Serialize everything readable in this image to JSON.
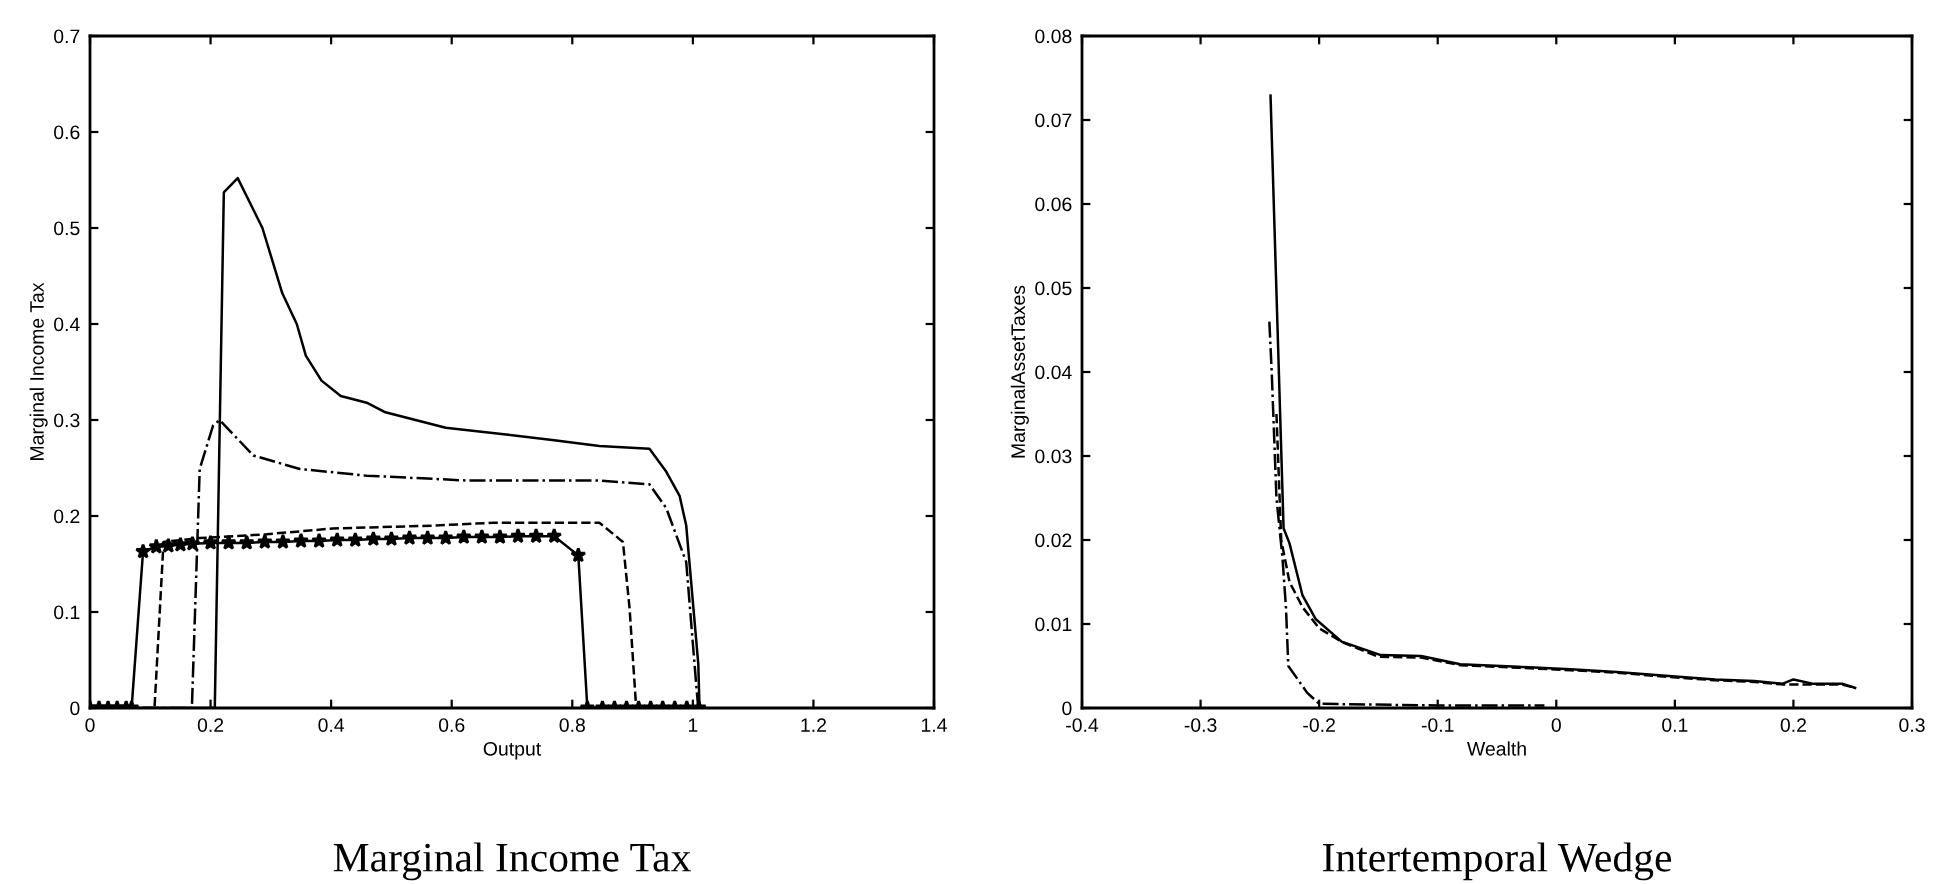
{
  "chart_data": [
    {
      "type": "line",
      "title": "Marginal Income Tax",
      "xlabel": "Output",
      "ylabel": "Marginal Income Tax",
      "xlim": [
        0,
        1.4
      ],
      "ylim": [
        0,
        0.7
      ],
      "xticks": [
        0,
        0.2,
        0.4,
        0.6,
        0.8,
        1,
        1.2,
        1.4
      ],
      "yticks": [
        0,
        0.1,
        0.2,
        0.3,
        0.4,
        0.5,
        0.6,
        0.7
      ],
      "grid": false,
      "legend": false,
      "series": [
        {
          "color": "#000000",
          "line_style": "solid",
          "marker": "none",
          "x": [
            0,
            0.207,
            0.222,
            0.245,
            0.286,
            0.319,
            0.343,
            0.358,
            0.384,
            0.416,
            0.459,
            0.49,
            0.59,
            0.69,
            0.77,
            0.845,
            0.928,
            0.956,
            0.978,
            0.989,
            1.009,
            1.011
          ],
          "values": [
            0,
            0,
            0.537,
            0.552,
            0.5,
            0.432,
            0.4,
            0.367,
            0.341,
            0.325,
            0.318,
            0.308,
            0.292,
            0.285,
            0.279,
            0.273,
            0.27,
            0.246,
            0.221,
            0.19,
            0.046,
            0
          ]
        },
        {
          "color": "#000000",
          "line_style": "dashdot",
          "marker": "none",
          "x": [
            0,
            0.169,
            0.182,
            0.204,
            0.215,
            0.271,
            0.348,
            0.459,
            0.624,
            0.845,
            0.928,
            0.956,
            0.989,
            1.006,
            1.009
          ],
          "values": [
            0,
            0,
            0.249,
            0.294,
            0.3,
            0.263,
            0.249,
            0.242,
            0.237,
            0.237,
            0.233,
            0.208,
            0.152,
            0.021,
            0
          ]
        },
        {
          "color": "#000000",
          "line_style": "dashed",
          "marker": "none",
          "x": [
            0,
            0.107,
            0.122,
            0.182,
            0.293,
            0.403,
            0.569,
            0.669,
            0.845,
            0.884,
            0.895,
            0.906
          ],
          "values": [
            0,
            0,
            0.173,
            0.177,
            0.181,
            0.187,
            0.19,
            0.193,
            0.193,
            0.173,
            0.104,
            0
          ]
        },
        {
          "color": "#000000",
          "line_style": "solid",
          "marker": "star",
          "x": [
            0,
            0.015,
            0.03,
            0.045,
            0.06,
            0.069,
            0.088,
            0.11,
            0.13,
            0.15,
            0.17,
            0.2,
            0.23,
            0.26,
            0.29,
            0.32,
            0.35,
            0.38,
            0.41,
            0.44,
            0.47,
            0.5,
            0.53,
            0.56,
            0.59,
            0.62,
            0.65,
            0.68,
            0.71,
            0.74,
            0.77,
            0.81,
            0.825,
            0.85,
            0.87,
            0.89,
            0.91,
            0.93,
            0.95,
            0.97,
            0.99,
            1.01
          ],
          "values": [
            0,
            0,
            0,
            0,
            0,
            0,
            0.163,
            0.168,
            0.169,
            0.17,
            0.171,
            0.172,
            0.172,
            0.172,
            0.173,
            0.173,
            0.174,
            0.174,
            0.175,
            0.175,
            0.176,
            0.176,
            0.177,
            0.177,
            0.177,
            0.178,
            0.178,
            0.178,
            0.179,
            0.179,
            0.179,
            0.159,
            0,
            0,
            0,
            0,
            0,
            0,
            0,
            0,
            0,
            0
          ]
        }
      ]
    },
    {
      "type": "line",
      "title": "Intertemporal Wedge",
      "xlabel": "Wealth",
      "ylabel": "MarginalAssetTaxes",
      "xlim": [
        -0.4,
        0.3
      ],
      "ylim": [
        0,
        0.08
      ],
      "xticks": [
        -0.4,
        -0.3,
        -0.2,
        -0.1,
        0,
        0.1,
        0.2,
        0.3
      ],
      "yticks": [
        0,
        0.01,
        0.02,
        0.03,
        0.04,
        0.05,
        0.06,
        0.07,
        0.08
      ],
      "grid": false,
      "legend": false,
      "series": [
        {
          "color": "#000000",
          "line_style": "solid",
          "marker": "none",
          "x": [
            -0.241,
            -0.23,
            -0.225,
            -0.214,
            -0.203,
            -0.181,
            -0.148,
            -0.114,
            -0.081,
            -0.032,
            0.012,
            0.051,
            0.095,
            0.134,
            0.167,
            0.191,
            0.2,
            0.216,
            0.241,
            0.252
          ],
          "values": [
            0.0729,
            0.0214,
            0.0196,
            0.0134,
            0.0106,
            0.0079,
            0.0063,
            0.0062,
            0.0052,
            0.0049,
            0.0046,
            0.0043,
            0.0038,
            0.0034,
            0.0032,
            0.0029,
            0.0034,
            0.0029,
            0.0029,
            0.0024
          ]
        },
        {
          "color": "#000000",
          "line_style": "dashed",
          "marker": "none",
          "x": [
            -0.236,
            -0.232,
            -0.225,
            -0.214,
            -0.2,
            -0.18,
            -0.15,
            -0.114,
            -0.081,
            -0.032,
            0.012,
            0.051,
            0.095,
            0.134,
            0.167,
            0.191,
            0.216,
            0.241,
            0.252
          ],
          "values": [
            0.035,
            0.02,
            0.015,
            0.012,
            0.0095,
            0.0078,
            0.0061,
            0.006,
            0.0051,
            0.0048,
            0.0045,
            0.0042,
            0.0037,
            0.0033,
            0.0031,
            0.0028,
            0.0028,
            0.0028,
            0.0024
          ]
        },
        {
          "color": "#000000",
          "line_style": "dashdot",
          "marker": "none",
          "x": [
            -0.242,
            -0.24,
            -0.236,
            -0.231,
            -0.228,
            -0.226,
            -0.21,
            -0.2,
            -0.1,
            -0.01
          ],
          "values": [
            0.046,
            0.04,
            0.025,
            0.018,
            0.012,
            0.005,
            0.0018,
            0.0005,
            0.0003,
            0.0003
          ]
        }
      ]
    }
  ]
}
